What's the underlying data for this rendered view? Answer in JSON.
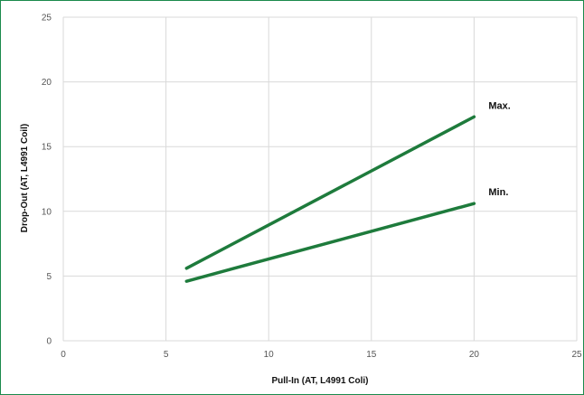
{
  "chart_data": {
    "type": "line",
    "xlabel": "Pull-In (AT, L4991 Coli)",
    "ylabel": "Drop-Out (AT, L4991 Coil)",
    "xlim": [
      0,
      25
    ],
    "ylim": [
      0,
      25
    ],
    "xticks": [
      "0",
      "5",
      "10",
      "15",
      "20",
      "25"
    ],
    "yticks": [
      "0",
      "5",
      "10",
      "15",
      "20",
      "25"
    ],
    "grid": true,
    "series": [
      {
        "name": "Max.",
        "x": [
          6,
          20
        ],
        "y": [
          5.6,
          17.3
        ]
      },
      {
        "name": "Min.",
        "x": [
          6,
          20
        ],
        "y": [
          4.6,
          10.6
        ]
      }
    ],
    "colors": {
      "line": "#1e7b3c",
      "grid": "#d9d9d9",
      "border": "#1b8a4c"
    }
  }
}
